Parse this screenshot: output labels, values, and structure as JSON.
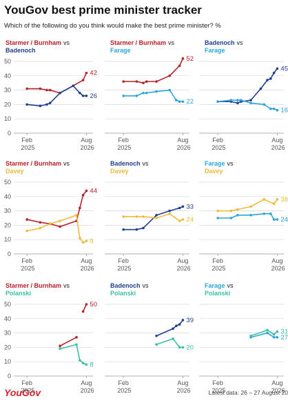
{
  "title": "YouGov best prime minister tracker",
  "subtitle": "Which of the following do you think would make the best prime minister? %",
  "footer": {
    "logo": "YouGov",
    "note": "Latest data: 26 – 27 August 20"
  },
  "chart_data": [
    {
      "type": "line",
      "joiner": "vs",
      "xlim": [
        "2024-10",
        "2026-10"
      ],
      "xticks": [
        {
          "value": "2025-02",
          "label": "Feb 2025"
        },
        {
          "value": "2026-08",
          "label": "Aug 2026"
        }
      ],
      "ylim": [
        0,
        50
      ],
      "yticks": [
        0,
        10,
        20,
        30,
        40,
        50
      ],
      "grid": true,
      "series": [
        {
          "name": "Starmer / Burnham",
          "color": "#b8202a",
          "x": [
            "2025-02",
            "2025-06",
            "2025-08",
            "2025-09",
            "2025-12",
            "2026-04",
            "2026-07",
            "2026-08"
          ],
          "values": [
            31,
            31,
            30,
            30,
            28,
            33,
            37,
            42
          ]
        },
        {
          "name": "Badenoch",
          "color": "#1f3f8f",
          "x": [
            "2025-02",
            "2025-06",
            "2025-08",
            "2025-09",
            "2025-12",
            "2026-04",
            "2026-06",
            "2026-07",
            "2026-08"
          ],
          "values": [
            20,
            19,
            20,
            21,
            28,
            33,
            28,
            26,
            26
          ]
        }
      ]
    },
    {
      "type": "line",
      "joiner": "vs",
      "xlim": [
        "2024-10",
        "2026-10"
      ],
      "xticks": [
        {
          "value": "2025-02",
          "label": "Feb 2025"
        },
        {
          "value": "2026-08",
          "label": "Aug 2026"
        }
      ],
      "ylim": [
        0,
        50
      ],
      "yticks": [
        0,
        10,
        20,
        30,
        40,
        50
      ],
      "grid": true,
      "series": [
        {
          "name": "Starmer / Burnham",
          "color": "#b8202a",
          "x": [
            "2025-02",
            "2025-06",
            "2025-08",
            "2025-09",
            "2025-12",
            "2026-04",
            "2026-07",
            "2026-08"
          ],
          "values": [
            36,
            36,
            35,
            36,
            36,
            40,
            47,
            52
          ]
        },
        {
          "name": "Farage",
          "color": "#2aa6d8",
          "x": [
            "2025-02",
            "2025-06",
            "2025-08",
            "2025-09",
            "2025-12",
            "2026-04",
            "2026-06",
            "2026-07",
            "2026-08"
          ],
          "values": [
            26,
            26,
            28,
            28,
            29,
            30,
            23,
            22,
            22
          ]
        }
      ]
    },
    {
      "type": "line",
      "joiner": "vs",
      "xlim": [
        "2024-10",
        "2026-10"
      ],
      "xticks": [
        {
          "value": "2025-02",
          "label": "Feb 2025"
        },
        {
          "value": "2026-08",
          "label": "Aug 2026"
        }
      ],
      "ylim": [
        0,
        50
      ],
      "yticks": [
        0,
        10,
        20,
        30,
        40,
        50
      ],
      "grid": true,
      "series": [
        {
          "name": "Badenoch",
          "color": "#1f3f8f",
          "x": [
            "2025-02",
            "2025-06",
            "2025-08",
            "2025-09",
            "2025-12",
            "2026-03",
            "2026-05",
            "2026-06",
            "2026-07",
            "2026-08"
          ],
          "values": [
            22,
            22,
            21,
            22,
            23,
            31,
            37,
            38,
            42,
            45
          ]
        },
        {
          "name": "Farage",
          "color": "#2aa6d8",
          "x": [
            "2025-02",
            "2025-06",
            "2025-08",
            "2025-09",
            "2025-12",
            "2026-04",
            "2026-06",
            "2026-07",
            "2026-08"
          ],
          "values": [
            22,
            23,
            23,
            23,
            21,
            20,
            17,
            17,
            16
          ]
        }
      ]
    },
    {
      "type": "line",
      "joiner": "vs",
      "xlim": [
        "2024-10",
        "2026-10"
      ],
      "xticks": [
        {
          "value": "2025-02",
          "label": "Feb 2025"
        },
        {
          "value": "2026-08",
          "label": "Aug 2026"
        }
      ],
      "ylim": [
        0,
        50
      ],
      "yticks": [
        0,
        10,
        20,
        30,
        40,
        50
      ],
      "grid": true,
      "series": [
        {
          "name": "Starmer / Burnham",
          "color": "#b8202a",
          "x": [
            "2025-02",
            "2025-06",
            "2025-09",
            "2025-12",
            "2026-05",
            "2026-06",
            "2026-07",
            "2026-08"
          ],
          "values": [
            24,
            22,
            21,
            19,
            23,
            32,
            41,
            44
          ]
        },
        {
          "name": "Davey",
          "color": "#efbb3c",
          "x": [
            "2025-02",
            "2025-06",
            "2025-09",
            "2025-12",
            "2026-05",
            "2026-06",
            "2026-07",
            "2026-08"
          ],
          "values": [
            16,
            18,
            21,
            23,
            27,
            11,
            8,
            9
          ]
        }
      ]
    },
    {
      "type": "line",
      "joiner": "vs",
      "xlim": [
        "2024-10",
        "2026-10"
      ],
      "xticks": [
        {
          "value": "2025-02",
          "label": "Feb 2025"
        },
        {
          "value": "2026-08",
          "label": "Aug 2026"
        }
      ],
      "ylim": [
        0,
        50
      ],
      "yticks": [
        0,
        10,
        20,
        30,
        40,
        50
      ],
      "grid": true,
      "series": [
        {
          "name": "Badenoch",
          "color": "#1f3f8f",
          "x": [
            "2025-02",
            "2025-06",
            "2025-08",
            "2025-12",
            "2026-04",
            "2026-07",
            "2026-08"
          ],
          "values": [
            17,
            17,
            18,
            27,
            30,
            32,
            33
          ]
        },
        {
          "name": "Davey",
          "color": "#efbb3c",
          "x": [
            "2025-02",
            "2025-06",
            "2025-08",
            "2025-12",
            "2026-04",
            "2026-07",
            "2026-08"
          ],
          "values": [
            26,
            26,
            26,
            25,
            28,
            23,
            24
          ]
        }
      ]
    },
    {
      "type": "line",
      "joiner": "vs",
      "xlim": [
        "2024-10",
        "2026-10"
      ],
      "xticks": [
        {
          "value": "2025-02",
          "label": "Feb 2025"
        },
        {
          "value": "2026-08",
          "label": "Aug 2026"
        }
      ],
      "ylim": [
        0,
        50
      ],
      "yticks": [
        0,
        10,
        20,
        30,
        40,
        50
      ],
      "grid": true,
      "series": [
        {
          "name": "Farage",
          "color": "#2aa6d8",
          "x": [
            "2025-02",
            "2025-06",
            "2025-08",
            "2025-12",
            "2026-04",
            "2026-06",
            "2026-07",
            "2026-08"
          ],
          "values": [
            25,
            25,
            27,
            27,
            28,
            28,
            24,
            24
          ]
        },
        {
          "name": "Davey",
          "color": "#efbb3c",
          "x": [
            "2025-02",
            "2025-06",
            "2025-08",
            "2025-12",
            "2026-04",
            "2026-07",
            "2026-08"
          ],
          "values": [
            30,
            30,
            31,
            33,
            38,
            35,
            38
          ]
        }
      ]
    },
    {
      "type": "line",
      "joiner": "vs",
      "xlim": [
        "2024-10",
        "2026-10"
      ],
      "xticks": [
        {
          "value": "2025-02",
          "label": "Feb 2025"
        },
        {
          "value": "2026-08",
          "label": "Aug 2026"
        }
      ],
      "ylim": [
        0,
        50
      ],
      "yticks": [
        0,
        10,
        20,
        30,
        40,
        50
      ],
      "grid": true,
      "series": [
        {
          "name": "Starmer / Burnham",
          "color": "#b8202a",
          "x": [
            "2025-12",
            "2026-05",
            "2026-06",
            "2026-07",
            "2026-08"
          ],
          "values": [
            21,
            27,
            null,
            45,
            50
          ]
        },
        {
          "name": "Polanski",
          "color": "#3cbfa6",
          "x": [
            "2025-12",
            "2026-05",
            "2026-06",
            "2026-07",
            "2026-08"
          ],
          "values": [
            19,
            22,
            11,
            9,
            8
          ]
        }
      ]
    },
    {
      "type": "line",
      "joiner": "vs",
      "xlim": [
        "2024-10",
        "2026-10"
      ],
      "xticks": [
        {
          "value": "2025-02",
          "label": "Feb 2025"
        },
        {
          "value": "2026-08",
          "label": "Aug 2026"
        }
      ],
      "ylim": [
        0,
        50
      ],
      "yticks": [
        0,
        10,
        20,
        30,
        40,
        50
      ],
      "grid": true,
      "series": [
        {
          "name": "Badenoch",
          "color": "#1f3f8f",
          "x": [
            "2025-12",
            "2026-05",
            "2026-06",
            "2026-07",
            "2026-08"
          ],
          "values": [
            28,
            33,
            35,
            36,
            39
          ]
        },
        {
          "name": "Polanski",
          "color": "#3cbfa6",
          "x": [
            "2025-12",
            "2026-05",
            "2026-07",
            "2026-08"
          ],
          "values": [
            22,
            26,
            20,
            20
          ]
        }
      ]
    },
    {
      "type": "line",
      "joiner": "vs",
      "xlim": [
        "2024-10",
        "2026-10"
      ],
      "xticks": [
        {
          "value": "2025-02",
          "label": "Feb 2025"
        },
        {
          "value": "2026-08",
          "label": "Aug 2026"
        }
      ],
      "ylim": [
        0,
        50
      ],
      "yticks": [
        0,
        10,
        20,
        30,
        40,
        50
      ],
      "grid": true,
      "series": [
        {
          "name": "Farage",
          "color": "#2aa6d8",
          "x": [
            "2025-12",
            "2026-05",
            "2026-07",
            "2026-08"
          ],
          "values": [
            27,
            30,
            27,
            27
          ]
        },
        {
          "name": "Polanski",
          "color": "#3cbfa6",
          "x": [
            "2025-12",
            "2026-05",
            "2026-07",
            "2026-08"
          ],
          "values": [
            28,
            32,
            29,
            31
          ]
        }
      ]
    }
  ]
}
